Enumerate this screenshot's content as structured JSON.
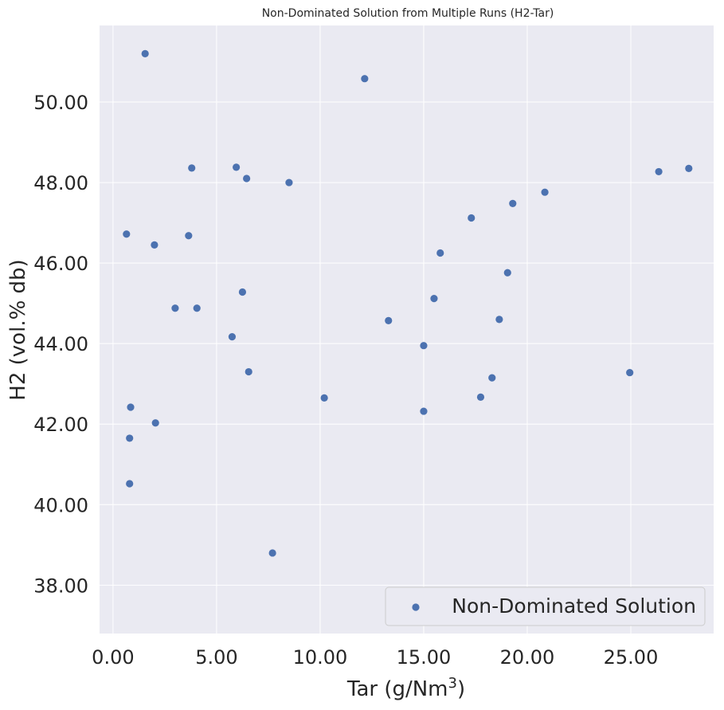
{
  "chart_data": {
    "type": "scatter",
    "title": "Non-Dominated Solution from Multiple Runs (H2-Tar)",
    "xlabel": "Tar (g/Nm",
    "xlabel_sup": "3",
    "xlabel_end": ")",
    "ylabel": "H2 (vol.% db)",
    "xlim": [
      -0.65,
      29.0
    ],
    "ylim": [
      36.8,
      51.9
    ],
    "xticks": [
      0,
      5,
      10,
      15,
      20,
      25
    ],
    "yticks": [
      38,
      40,
      42,
      44,
      46,
      48,
      50
    ],
    "tick_format_decimals": 2,
    "grid": true,
    "legend_position": "lower right",
    "series": [
      {
        "name": "Non-Dominated Solution",
        "color": "#4c72b0",
        "points": [
          {
            "x": 1.55,
            "y": 51.2
          },
          {
            "x": 12.15,
            "y": 50.58
          },
          {
            "x": 3.8,
            "y": 48.36
          },
          {
            "x": 5.95,
            "y": 48.38
          },
          {
            "x": 6.45,
            "y": 48.1
          },
          {
            "x": 8.5,
            "y": 48.0
          },
          {
            "x": 0.65,
            "y": 46.72
          },
          {
            "x": 2.0,
            "y": 46.45
          },
          {
            "x": 3.65,
            "y": 46.68
          },
          {
            "x": 6.25,
            "y": 45.28
          },
          {
            "x": 3.0,
            "y": 44.88
          },
          {
            "x": 4.05,
            "y": 44.88
          },
          {
            "x": 5.75,
            "y": 44.17
          },
          {
            "x": 6.55,
            "y": 43.3
          },
          {
            "x": 0.85,
            "y": 42.42
          },
          {
            "x": 2.05,
            "y": 42.03
          },
          {
            "x": 0.8,
            "y": 41.65
          },
          {
            "x": 0.8,
            "y": 40.52
          },
          {
            "x": 7.7,
            "y": 38.8
          },
          {
            "x": 10.2,
            "y": 42.65
          },
          {
            "x": 13.3,
            "y": 44.57
          },
          {
            "x": 15.0,
            "y": 43.95
          },
          {
            "x": 15.0,
            "y": 42.32
          },
          {
            "x": 15.5,
            "y": 45.12
          },
          {
            "x": 15.8,
            "y": 46.25
          },
          {
            "x": 17.3,
            "y": 47.12
          },
          {
            "x": 17.75,
            "y": 42.67
          },
          {
            "x": 18.3,
            "y": 43.15
          },
          {
            "x": 18.65,
            "y": 44.6
          },
          {
            "x": 19.05,
            "y": 45.76
          },
          {
            "x": 19.3,
            "y": 47.48
          },
          {
            "x": 20.85,
            "y": 47.76
          },
          {
            "x": 24.95,
            "y": 43.28
          },
          {
            "x": 26.35,
            "y": 48.27
          },
          {
            "x": 27.8,
            "y": 48.35
          }
        ]
      }
    ]
  }
}
